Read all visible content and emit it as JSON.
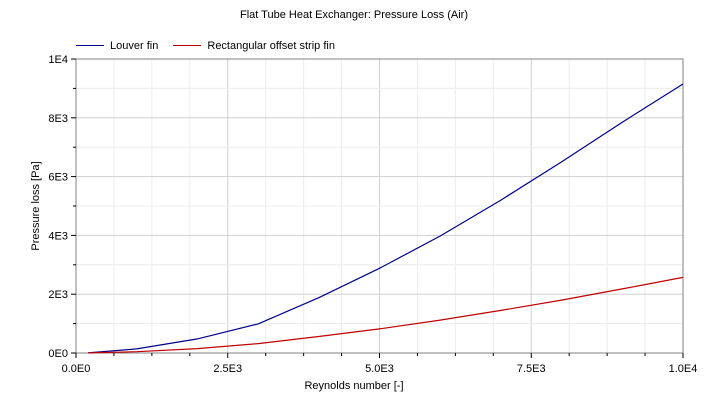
{
  "chart_data": {
    "type": "line",
    "title": "Flat Tube Heat Exchanger: Pressure Loss (Air)",
    "xlabel": "Reynolds number [-]",
    "ylabel": "Pressure loss [Pa]",
    "xlim": [
      0,
      10000
    ],
    "ylim": [
      0,
      10000
    ],
    "x_ticks": [
      0,
      2500,
      5000,
      7500,
      10000
    ],
    "x_tick_labels": [
      "0.0E0",
      "2.5E3",
      "5.0E3",
      "7.5E3",
      "1.0E4"
    ],
    "y_ticks": [
      0,
      2000,
      4000,
      6000,
      8000,
      10000
    ],
    "y_tick_labels": [
      "0E0",
      "2E3",
      "4E3",
      "6E3",
      "8E3",
      "1E4"
    ],
    "grid": true,
    "legend_position": "top-left",
    "x": [
      200,
      1000,
      2000,
      3000,
      4000,
      5000,
      6000,
      7000,
      8000,
      9000,
      10000
    ],
    "series": [
      {
        "name": "Louver fin",
        "color": "#00008b",
        "values": [
          8,
          140,
          480,
          990,
          1880,
          2880,
          3980,
          5200,
          6500,
          7850,
          9150
        ]
      },
      {
        "name": "Rectangular offset strip fin",
        "color": "#c00000",
        "values": [
          3,
          45,
          150,
          320,
          560,
          820,
          1120,
          1450,
          1800,
          2180,
          2570
        ]
      }
    ]
  }
}
